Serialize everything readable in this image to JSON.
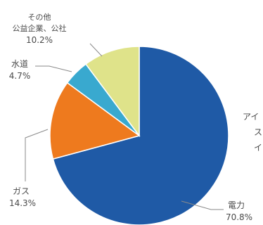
{
  "chart_data": {
    "type": "pie",
    "slices": [
      {
        "name": "電力",
        "value": 70.8,
        "label": "70.8%",
        "color": "#1f5aa6"
      },
      {
        "name": "ガス",
        "value": 14.3,
        "label": "14.3%",
        "color": "#ee7a1e"
      },
      {
        "name": "水道",
        "value": 4.7,
        "label": "4.7%",
        "color": "#39a9cf"
      },
      {
        "name_lines": [
          "その他",
          "公益企業、公社"
        ],
        "value": 10.2,
        "label": "10.2%",
        "color": "#dfe38a"
      }
    ],
    "start_angle_deg": 0,
    "direction": "clockwise",
    "legend": "none"
  },
  "cut_off_text": {
    "line1": "アイ",
    "line2": "ス",
    "line3": "イ"
  }
}
